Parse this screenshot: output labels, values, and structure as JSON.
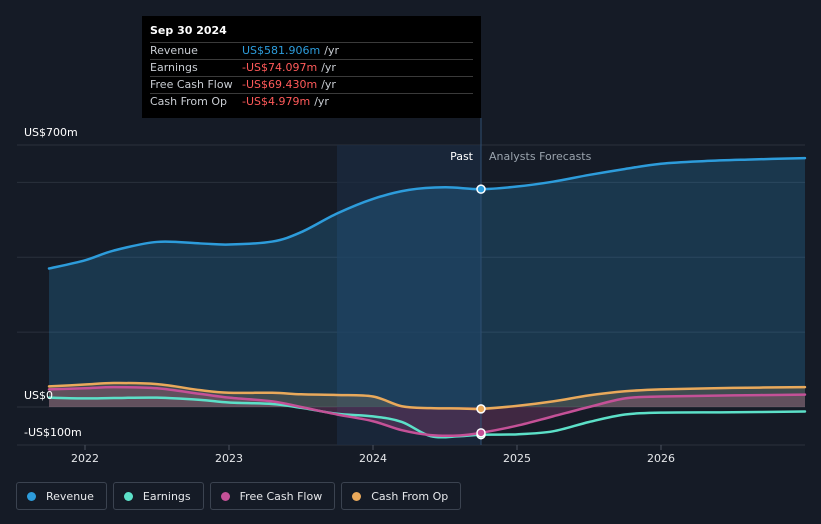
{
  "chart_data": {
    "type": "line",
    "title": "",
    "y_unit_labels": [
      "US$700m",
      "US$0",
      "-US$100m"
    ],
    "ylim": [
      -100,
      700
    ],
    "x_ticks": [
      "2022",
      "2023",
      "2024",
      "2025",
      "2026"
    ],
    "regions": {
      "past_label": "Past",
      "forecast_label": "Analysts Forecasts"
    },
    "past_end_date": "Sep 30 2024",
    "series": [
      {
        "name": "Revenue",
        "color": "#2d9cdb",
        "points": [
          [
            2021.75,
            370
          ],
          [
            2022.0,
            392
          ],
          [
            2022.2,
            418
          ],
          [
            2022.5,
            441
          ],
          [
            2022.8,
            437
          ],
          [
            2023.0,
            434
          ],
          [
            2023.3,
            442
          ],
          [
            2023.5,
            467
          ],
          [
            2023.75,
            517
          ],
          [
            2024.0,
            556
          ],
          [
            2024.25,
            580
          ],
          [
            2024.5,
            587
          ],
          [
            2024.75,
            582
          ],
          [
            2025.0,
            589
          ],
          [
            2025.25,
            602
          ],
          [
            2025.5,
            620
          ],
          [
            2025.75,
            636
          ],
          [
            2026.0,
            650
          ],
          [
            2026.3,
            657
          ],
          [
            2026.6,
            661
          ],
          [
            2027.0,
            665
          ]
        ]
      },
      {
        "name": "Earnings",
        "color": "#5ce0c8",
        "points": [
          [
            2021.75,
            25
          ],
          [
            2022.0,
            23
          ],
          [
            2022.2,
            24
          ],
          [
            2022.5,
            25
          ],
          [
            2022.8,
            19
          ],
          [
            2023.0,
            12
          ],
          [
            2023.3,
            8
          ],
          [
            2023.5,
            -2
          ],
          [
            2023.75,
            -18
          ],
          [
            2024.0,
            -25
          ],
          [
            2024.2,
            -40
          ],
          [
            2024.4,
            -78
          ],
          [
            2024.6,
            -78
          ],
          [
            2024.75,
            -74
          ],
          [
            2025.0,
            -73
          ],
          [
            2025.25,
            -65
          ],
          [
            2025.5,
            -40
          ],
          [
            2025.75,
            -20
          ],
          [
            2026.0,
            -15
          ],
          [
            2026.5,
            -14
          ],
          [
            2027.0,
            -12
          ]
        ]
      },
      {
        "name": "Free Cash Flow",
        "color": "#c45197",
        "points": [
          [
            2021.75,
            47
          ],
          [
            2022.0,
            50
          ],
          [
            2022.2,
            53
          ],
          [
            2022.5,
            50
          ],
          [
            2022.8,
            35
          ],
          [
            2023.0,
            25
          ],
          [
            2023.3,
            15
          ],
          [
            2023.5,
            0
          ],
          [
            2023.75,
            -20
          ],
          [
            2024.0,
            -38
          ],
          [
            2024.2,
            -62
          ],
          [
            2024.4,
            -75
          ],
          [
            2024.6,
            -76
          ],
          [
            2024.75,
            -69
          ],
          [
            2025.0,
            -50
          ],
          [
            2025.25,
            -25
          ],
          [
            2025.5,
            0
          ],
          [
            2025.75,
            23
          ],
          [
            2026.0,
            28
          ],
          [
            2026.5,
            31
          ],
          [
            2027.0,
            33
          ]
        ]
      },
      {
        "name": "Cash From Op",
        "color": "#e9a95b",
        "points": [
          [
            2021.75,
            55
          ],
          [
            2022.0,
            60
          ],
          [
            2022.2,
            64
          ],
          [
            2022.5,
            61
          ],
          [
            2022.8,
            45
          ],
          [
            2023.0,
            38
          ],
          [
            2023.3,
            38
          ],
          [
            2023.5,
            34
          ],
          [
            2023.75,
            32
          ],
          [
            2024.0,
            28
          ],
          [
            2024.2,
            2
          ],
          [
            2024.4,
            -3
          ],
          [
            2024.6,
            -4
          ],
          [
            2024.75,
            -5
          ],
          [
            2025.0,
            3
          ],
          [
            2025.25,
            15
          ],
          [
            2025.5,
            31
          ],
          [
            2025.75,
            42
          ],
          [
            2026.0,
            47
          ],
          [
            2026.5,
            51
          ],
          [
            2027.0,
            53
          ]
        ]
      }
    ],
    "markers": [
      {
        "series": "Revenue",
        "x": 2024.75,
        "y": 582
      },
      {
        "series": "Earnings",
        "x": 2024.75,
        "y": -74
      },
      {
        "series": "Free Cash Flow",
        "x": 2024.75,
        "y": -69
      },
      {
        "series": "Cash From Op",
        "x": 2024.75,
        "y": -5
      }
    ]
  },
  "tooltip": {
    "date": "Sep 30 2024",
    "rows": [
      {
        "name": "Revenue",
        "value": "US$581.906m",
        "unit": "/yr",
        "color": "#2d9cdb"
      },
      {
        "name": "Earnings",
        "value": "-US$74.097m",
        "unit": "/yr",
        "color": "#ff5a5a"
      },
      {
        "name": "Free Cash Flow",
        "value": "-US$69.430m",
        "unit": "/yr",
        "color": "#ff5a5a"
      },
      {
        "name": "Cash From Op",
        "value": "-US$4.979m",
        "unit": "/yr",
        "color": "#ff5a5a"
      }
    ]
  },
  "legend": [
    {
      "label": "Revenue",
      "color": "#2d9cdb"
    },
    {
      "label": "Earnings",
      "color": "#5ce0c8"
    },
    {
      "label": "Free Cash Flow",
      "color": "#c45197"
    },
    {
      "label": "Cash From Op",
      "color": "#e9a95b"
    }
  ]
}
